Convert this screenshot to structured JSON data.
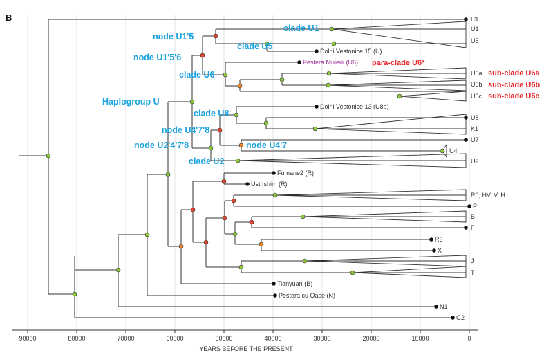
{
  "panel_label": "B",
  "axis": {
    "title": "YEARS BEFORE THE PRESENT",
    "ticks": [
      "90000",
      "80000",
      "70000",
      "60000",
      "50000",
      "40000",
      "30000",
      "20000",
      "10000",
      "0"
    ]
  },
  "leaves": {
    "L3": "L3",
    "U1": "U1",
    "U5": "U5",
    "dv15": "Dolni Vestonice 15 (U)",
    "pm": "Pestera Muierii (U6)",
    "U6a": "U6a",
    "U6b": "U6b",
    "U6c": "U6c",
    "dv13": "Dolni Vestonice 13 (U8b)",
    "U8": "U8",
    "K1": "K1",
    "U7": "U7",
    "U4": "U4",
    "U2": "U2",
    "fumane": "Fumane2 (R)",
    "ustishim": "Ust Ishim (R)",
    "R0": "R0, HV, V, H",
    "P": "P",
    "B": "B",
    "F": "F",
    "R3": "R3",
    "X": "X",
    "J": "J",
    "T": "T",
    "tianyuan": "Tianyuan (B)",
    "oase": "Pestera cu Oase (N)",
    "N1": "N1",
    "G2": "G2"
  },
  "annotations": {
    "clade_U1": "clade  U1",
    "node_U1_5": "node  U1'5",
    "clade_U5": "clade  U5",
    "node_U1_5_6": "node  U1'5'6",
    "clade_U6": "clade  U6",
    "haplogroup_U": "Haplogroup  U",
    "clade_U8": "clade  U8",
    "node_U4_7_8": "node  U4'7'8",
    "node_U2_4_7_8": "node  U2'4'7'8",
    "node_U4_7": "node  U4'7",
    "clade_U2": "clade  U2",
    "para_clade_U6": "para-clade  U6*",
    "sub_clade_U6a": "sub-clade  U6a",
    "sub_clade_U6b": "sub-clade  U6b",
    "sub_clade_U6c": "sub-clade  U6c"
  },
  "colors": {
    "line": "#333333",
    "node_green": "#8cc63f",
    "node_red": "#e2452b",
    "node_orange": "#e8872c",
    "leaf_black": "#111111",
    "annotation_blue": "#1aa3e0",
    "annotation_red": "#e8282b",
    "pestera_purple": "#9b2d96"
  }
}
